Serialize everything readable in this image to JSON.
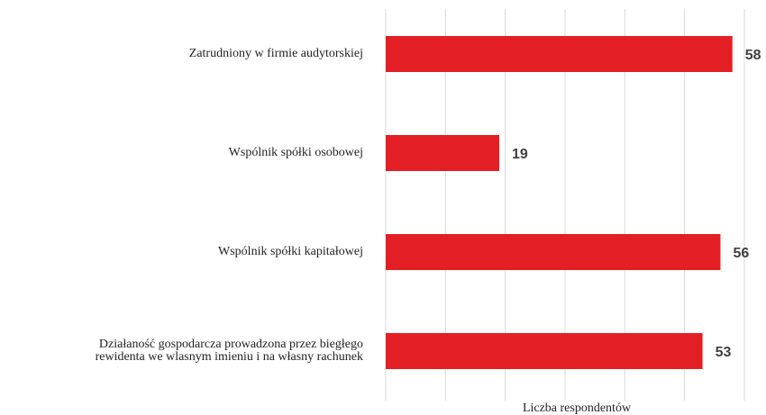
{
  "chart_data": {
    "type": "bar",
    "orientation": "horizontal",
    "categories": [
      "Zatrudniony w firmie audytorskiej",
      "Wspólnik spółki osobowej",
      "Wspólnik spółki kapitałowej",
      "Działaność gospodarcza prowadzona przez biegłego\nrewidenta we wlasnym imieniu i na własny rachunek"
    ],
    "values": [
      58,
      19,
      56,
      53
    ],
    "color": "#e31e24",
    "x_label": "Liczba respondentów",
    "xlim": [
      0,
      60
    ],
    "xticks": [
      0,
      10,
      20,
      30,
      40,
      50,
      60
    ],
    "grid": true
  }
}
